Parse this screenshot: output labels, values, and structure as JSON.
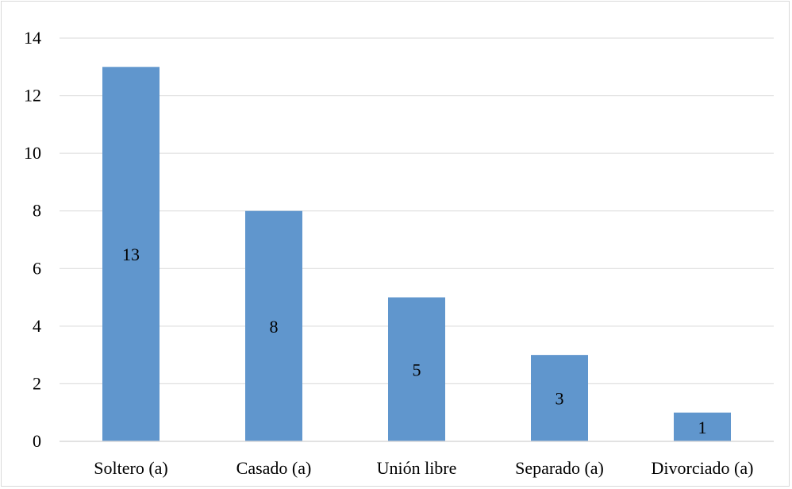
{
  "chart_data": {
    "type": "bar",
    "title": "",
    "xlabel": "",
    "ylabel": "",
    "categories": [
      "Soltero (a)",
      "Casado (a)",
      "Unión libre",
      "Separado (a)",
      "Divorciado (a)"
    ],
    "values": [
      13,
      8,
      5,
      3,
      1
    ],
    "data_labels": [
      "13",
      "8",
      "5",
      "3",
      "1"
    ],
    "ylim": [
      0,
      14
    ],
    "yticks": [
      0,
      2,
      4,
      6,
      8,
      10,
      12,
      14
    ],
    "grid": true,
    "legend": "none",
    "colors": {
      "bar": "#6096cd",
      "grid": "#d9d9d9",
      "axis": "#d9d9d9",
      "text": "#000000"
    }
  }
}
